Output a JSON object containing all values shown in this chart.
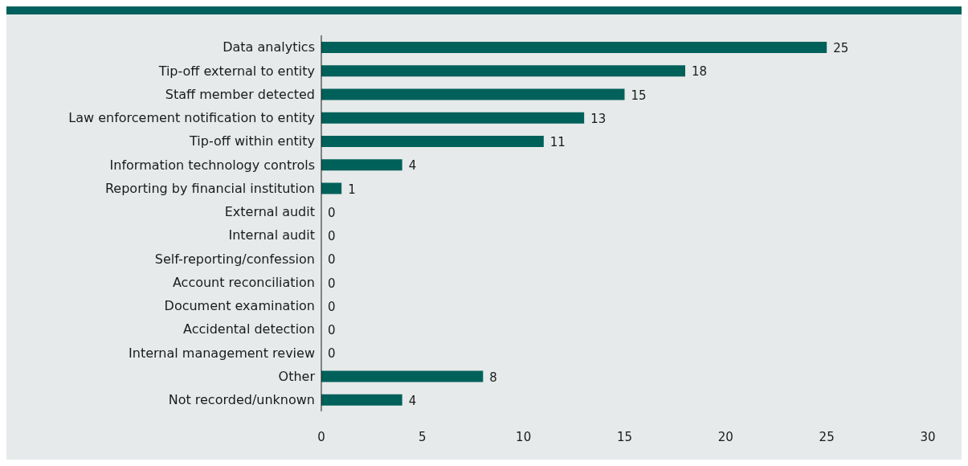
{
  "chart_data": {
    "type": "bar",
    "orientation": "horizontal",
    "categories": [
      "Data analytics",
      "Tip-off external to entity",
      "Staff member detected",
      "Law enforcement notification to entity",
      "Tip-off within entity",
      "Information technology controls",
      "Reporting by financial institution",
      "External audit",
      "Internal audit",
      "Self-reporting/confession",
      "Account reconciliation",
      "Document examination",
      "Accidental detection",
      "Internal management review",
      "Other",
      "Not recorded/unknown"
    ],
    "values": [
      25,
      18,
      15,
      13,
      11,
      4,
      1,
      0,
      0,
      0,
      0,
      0,
      0,
      0,
      8,
      4
    ],
    "color": "#00605a",
    "xlim": [
      0,
      30
    ],
    "xticks": [
      0,
      5,
      10,
      15,
      20,
      25,
      30
    ],
    "data_labels": true
  }
}
